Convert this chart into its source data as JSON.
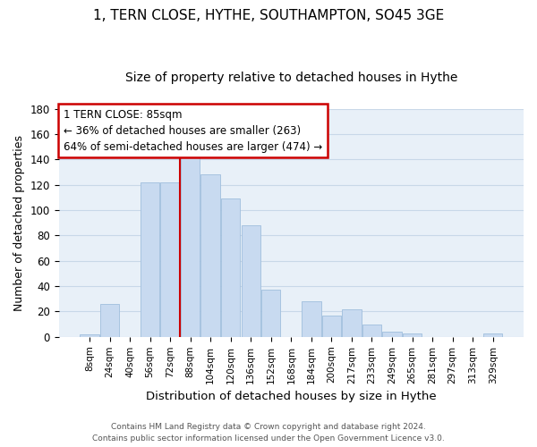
{
  "title": "1, TERN CLOSE, HYTHE, SOUTHAMPTON, SO45 3GE",
  "subtitle": "Size of property relative to detached houses in Hythe",
  "xlabel": "Distribution of detached houses by size in Hythe",
  "ylabel": "Number of detached properties",
  "bar_color": "#c8daf0",
  "bar_edge_color": "#a0bedd",
  "categories": [
    "8sqm",
    "24sqm",
    "40sqm",
    "56sqm",
    "72sqm",
    "88sqm",
    "104sqm",
    "120sqm",
    "136sqm",
    "152sqm",
    "168sqm",
    "184sqm",
    "200sqm",
    "217sqm",
    "233sqm",
    "249sqm",
    "265sqm",
    "281sqm",
    "297sqm",
    "313sqm",
    "329sqm"
  ],
  "values": [
    2,
    26,
    0,
    122,
    122,
    145,
    128,
    109,
    88,
    37,
    0,
    28,
    17,
    22,
    10,
    4,
    3,
    0,
    0,
    0,
    3
  ],
  "ylim": [
    0,
    180
  ],
  "yticks": [
    0,
    20,
    40,
    60,
    80,
    100,
    120,
    140,
    160,
    180
  ],
  "vline_color": "#cc0000",
  "annotation_title": "1 TERN CLOSE: 85sqm",
  "annotation_line1": "← 36% of detached houses are smaller (263)",
  "annotation_line2": "64% of semi-detached houses are larger (474) →",
  "annotation_box_color": "#ffffff",
  "annotation_box_edge": "#cc0000",
  "footer_line1": "Contains HM Land Registry data © Crown copyright and database right 2024.",
  "footer_line2": "Contains public sector information licensed under the Open Government Licence v3.0.",
  "background_color": "#ffffff",
  "plot_bg_color": "#e8f0f8",
  "grid_color": "#c8d8e8",
  "title_fontsize": 11,
  "subtitle_fontsize": 10
}
